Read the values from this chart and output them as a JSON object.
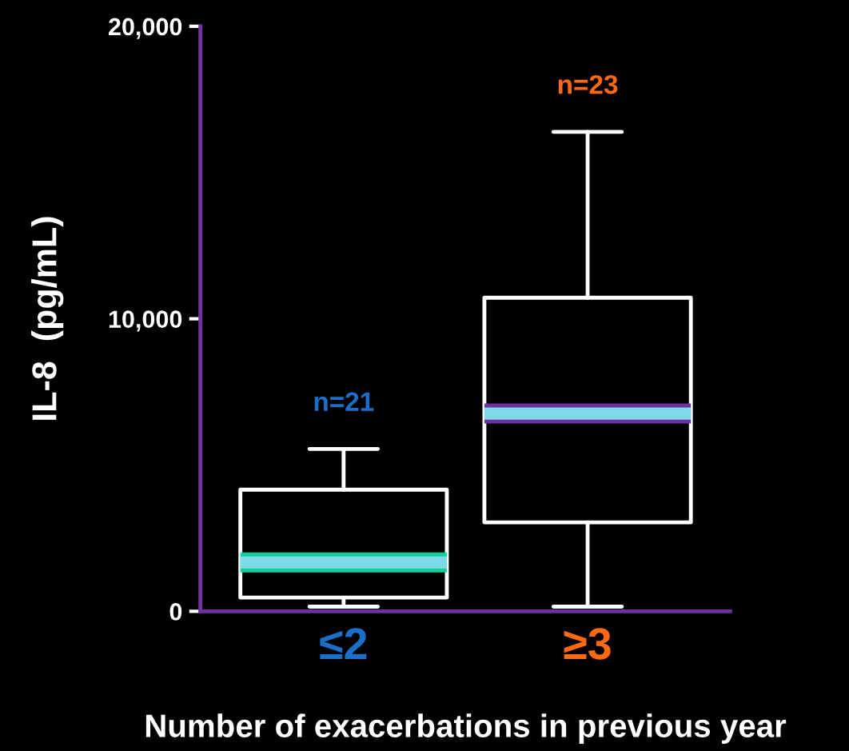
{
  "chart_data": {
    "type": "box",
    "categories": [
      "≤2",
      "≥3"
    ],
    "boxes": [
      {
        "low": 160,
        "q1": 470,
        "median": 1670,
        "q3": 4160,
        "high": 5550
      },
      {
        "low": 160,
        "q1": 3040,
        "median": 6760,
        "q3": 10720,
        "high": 16390
      }
    ],
    "xlabel": "Number of exacerbations in previous year",
    "ylabel": "IL-8  (pg/mL)",
    "ylim": [
      0,
      20000
    ],
    "yticks": [
      {
        "value": 0,
        "label": "0"
      },
      {
        "value": 10000,
        "label": "10,000"
      },
      {
        "value": 20000,
        "label": "20,000"
      }
    ],
    "annotations": [
      "n=21",
      "n=23"
    ],
    "grid": false
  }
}
